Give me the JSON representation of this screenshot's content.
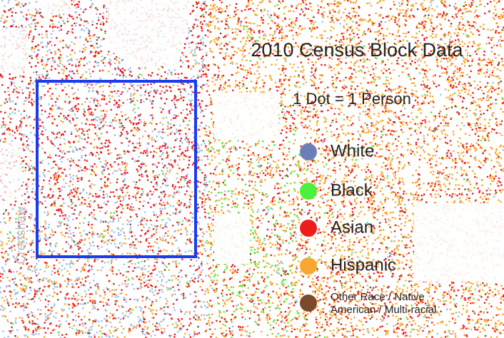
{
  "map": {
    "title": "2010 Census Block Data",
    "subtitle": "1 Dot = 1 Person",
    "legend": [
      {
        "label": "White",
        "color": "#6a7fb8"
      },
      {
        "label": "Black",
        "color": "#4cf03c"
      },
      {
        "label": "Asian",
        "color": "#f01c1c"
      },
      {
        "label": "Hispanic",
        "color": "#f8a830"
      },
      {
        "label": "Other Race / Native American / Multi-racial",
        "color": "#7a4a2a"
      }
    ],
    "streets": [
      "Crenshaw"
    ]
  }
}
